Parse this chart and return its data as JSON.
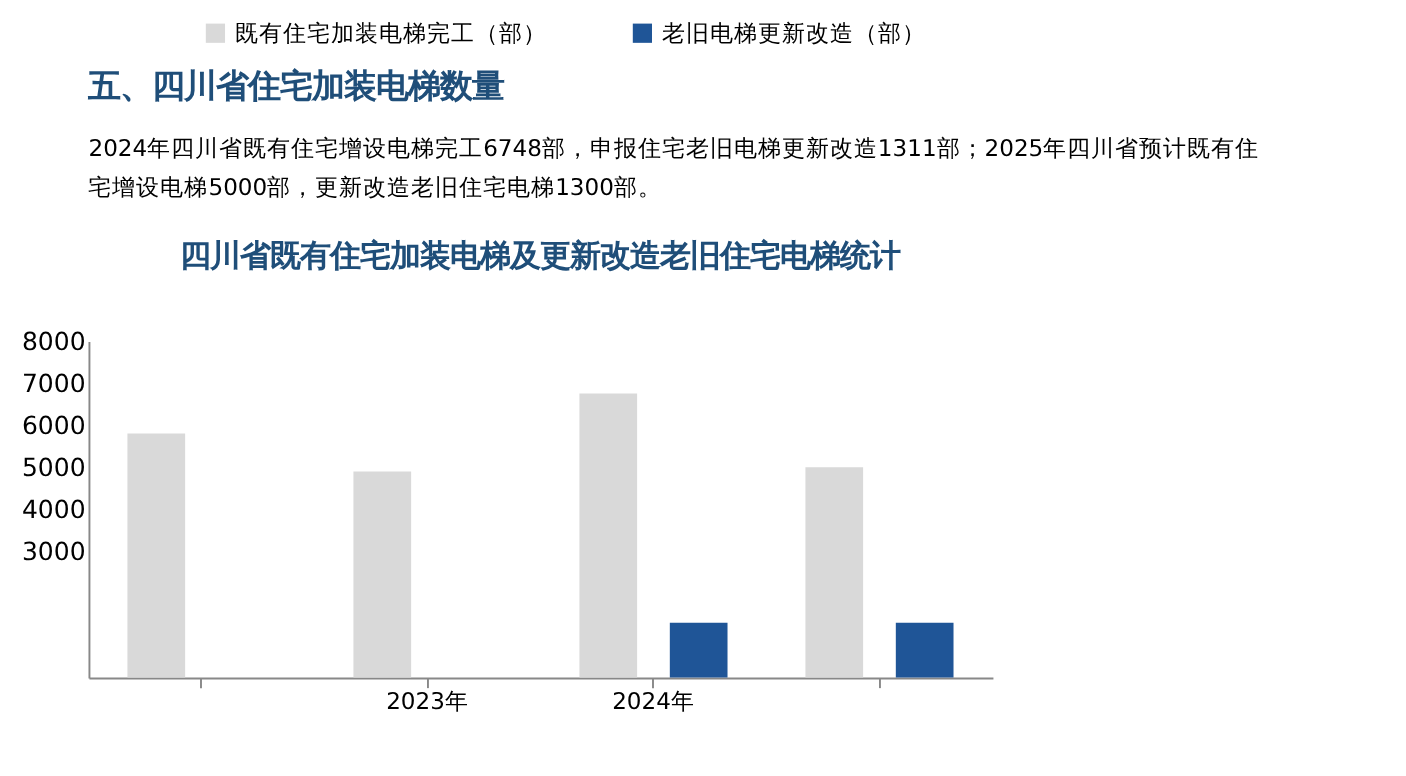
{
  "chart_data": {
    "type": "bar",
    "title": "四川省既有住宅加装电梯及更新改造老旧住宅电梯统计",
    "annotations": [
      "五、四川省住宅加装电梯数量",
      "2024年四川省既有住宅增设电梯完工6748部，申报住宅老旧电梯更新改造1311部；2025年四川省预计既有住宅增设电梯5000部，更新改造老旧住宅电梯1300部。"
    ],
    "categories": [
      null,
      "2023年",
      "2024年",
      null
    ],
    "series": [
      {
        "name": "既有住宅加装电梯完工（部）",
        "color": "#d9d9d9",
        "values": [
          5800,
          4900,
          6750,
          5000
        ]
      },
      {
        "name": "老旧电梯更新改造（部）",
        "color": "#1f5597",
        "values": [
          null,
          null,
          1300,
          1300
        ]
      }
    ],
    "ylim": [
      0,
      8000
    ],
    "yticks": [
      3000,
      4000,
      5000,
      6000,
      7000,
      8000
    ],
    "grid": false,
    "legend": "top"
  }
}
